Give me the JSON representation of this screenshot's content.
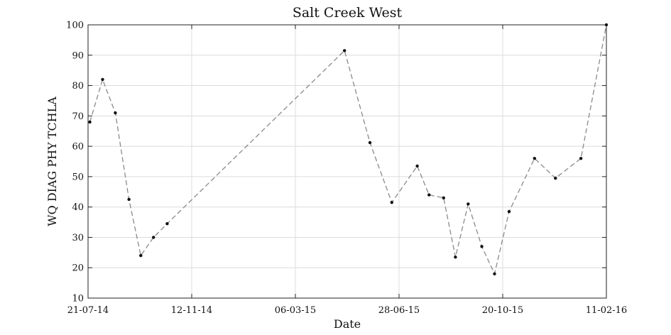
{
  "chart_data": {
    "type": "line",
    "title": "Salt Creek West",
    "xlabel": "Date",
    "ylabel": "WQ DIAG PHY TCHLA",
    "ylim": [
      10,
      100
    ],
    "xlim": [
      "2014-07-21",
      "2016-02-11"
    ],
    "yticks": [
      10,
      20,
      30,
      40,
      50,
      60,
      70,
      80,
      90,
      100
    ],
    "xticks": [
      {
        "date": "2014-07-21",
        "label": "21-07-14"
      },
      {
        "date": "2014-11-12",
        "label": "12-11-14"
      },
      {
        "date": "2015-03-06",
        "label": "06-03-15"
      },
      {
        "date": "2015-06-28",
        "label": "28-06-15"
      },
      {
        "date": "2015-10-20",
        "label": "20-10-15"
      },
      {
        "date": "2016-02-11",
        "label": "11-02-16"
      }
    ],
    "grid": true,
    "line_style": "dashed",
    "colors": {
      "line": "#8a8a8a",
      "marker": "#111111"
    },
    "x": [
      "2014-07-23",
      "2014-08-06",
      "2014-08-20",
      "2014-09-04",
      "2014-09-17",
      "2014-10-01",
      "2014-10-16",
      "2015-04-29",
      "2015-05-27",
      "2015-06-20",
      "2015-07-18",
      "2015-07-31",
      "2015-08-16",
      "2015-08-29",
      "2015-09-12",
      "2015-09-27",
      "2015-10-11",
      "2015-10-27",
      "2015-11-24",
      "2015-12-17",
      "2016-01-14",
      "2016-02-11"
    ],
    "series": [
      {
        "values": [
          68,
          82,
          71,
          42.5,
          24,
          30,
          34.5,
          91.5,
          61.2,
          41.5,
          53.5,
          44,
          43,
          23.5,
          41,
          27,
          18,
          38.5,
          56,
          49.5,
          56,
          100
        ]
      }
    ]
  }
}
